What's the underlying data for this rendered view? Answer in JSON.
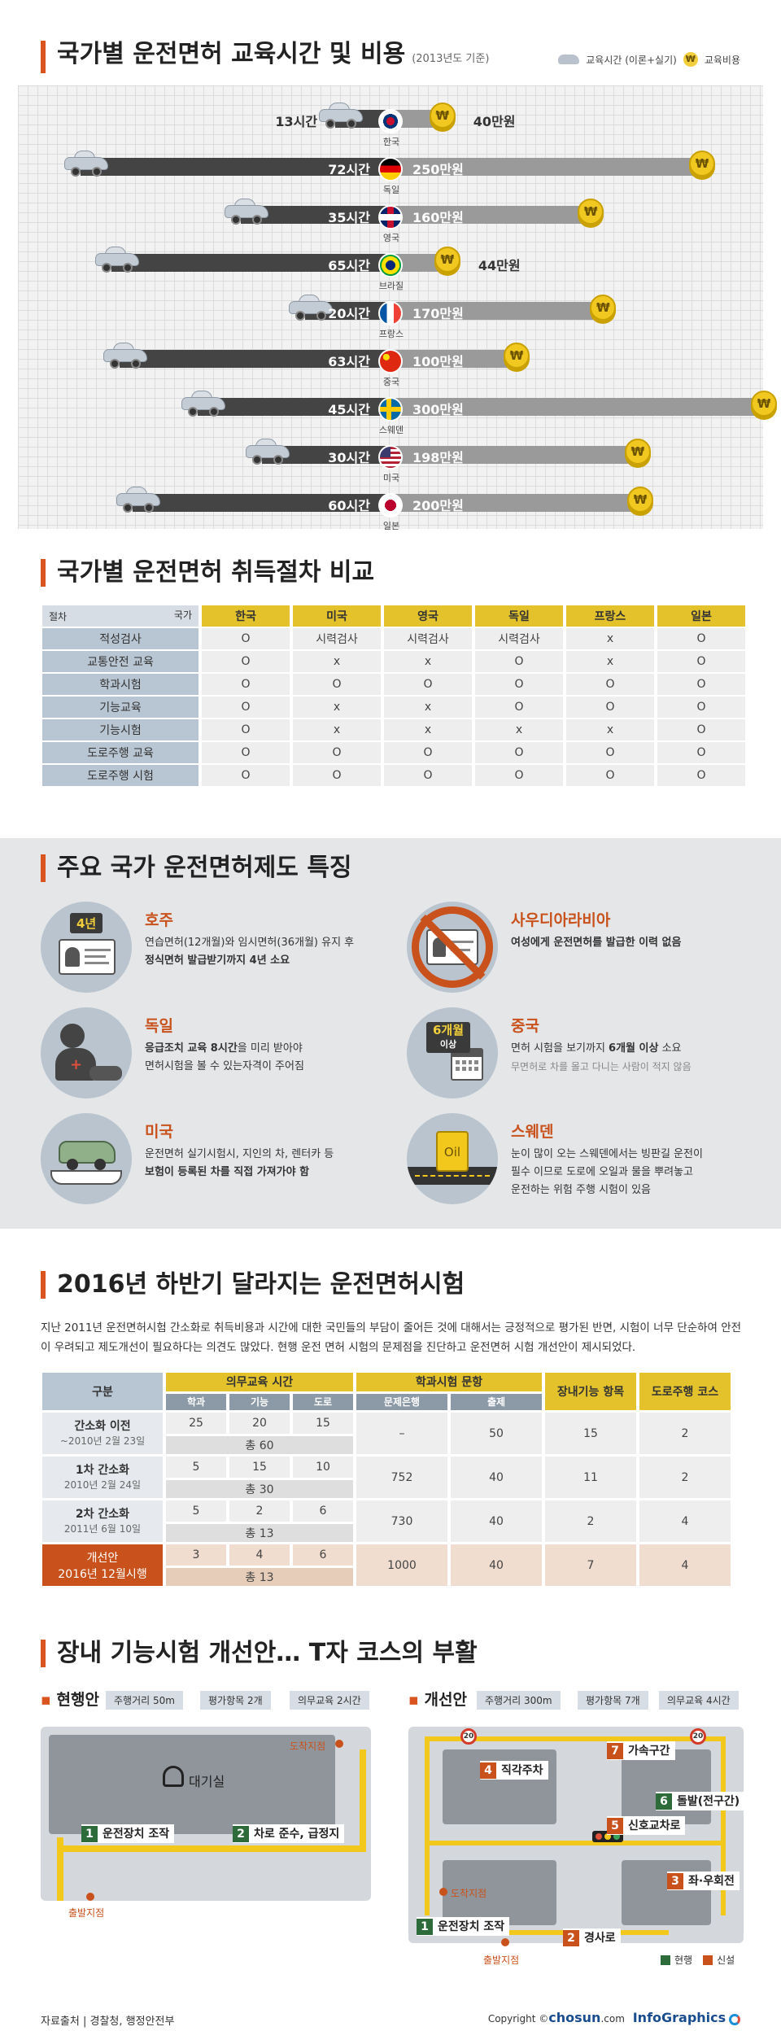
{
  "section1": {
    "title": "국가별 운전면허 교육시간 및 비용",
    "subtitle": "(2013년도 기준)",
    "legend_time": "교육시간 (이론+실기)",
    "legend_cost": "교육비용",
    "coin_symbol": "₩",
    "rows": [
      {
        "country": "한국",
        "hours": "13시간",
        "cost": "40만원",
        "h": 13,
        "c": 40
      },
      {
        "country": "독일",
        "hours": "72시간",
        "cost": "250만원",
        "h": 72,
        "c": 250
      },
      {
        "country": "영국",
        "hours": "35시간",
        "cost": "160만원",
        "h": 35,
        "c": 160
      },
      {
        "country": "브라질",
        "hours": "65시간",
        "cost": "44만원",
        "h": 65,
        "c": 44
      },
      {
        "country": "프랑스",
        "hours": "20시간",
        "cost": "170만원",
        "h": 20,
        "c": 170
      },
      {
        "country": "중국",
        "hours": "63시간",
        "cost": "100만원",
        "h": 63,
        "c": 100
      },
      {
        "country": "스웨덴",
        "hours": "45시간",
        "cost": "300만원",
        "h": 45,
        "c": 300
      },
      {
        "country": "미국",
        "hours": "30시간",
        "cost": "198만원",
        "h": 30,
        "c": 198
      },
      {
        "country": "일본",
        "hours": "60시간",
        "cost": "200만원",
        "h": 60,
        "c": 200
      }
    ]
  },
  "section2": {
    "title": "국가별 운전면허 취득절차 비교",
    "corner_procedure": "절차",
    "corner_country": "국가",
    "countries": [
      "한국",
      "미국",
      "영국",
      "독일",
      "프랑스",
      "일본"
    ],
    "rows": [
      {
        "label": "적성검사",
        "values": [
          "O",
          "시력검사",
          "시력검사",
          "시력검사",
          "x",
          "O"
        ]
      },
      {
        "label": "교통안전 교육",
        "values": [
          "O",
          "x",
          "x",
          "O",
          "x",
          "O"
        ]
      },
      {
        "label": "학과시험",
        "values": [
          "O",
          "O",
          "O",
          "O",
          "O",
          "O"
        ]
      },
      {
        "label": "기능교육",
        "values": [
          "O",
          "x",
          "x",
          "O",
          "O",
          "O"
        ]
      },
      {
        "label": "기능시험",
        "values": [
          "O",
          "x",
          "x",
          "x",
          "x",
          "O"
        ]
      },
      {
        "label": "도로주행 교육",
        "values": [
          "O",
          "O",
          "O",
          "O",
          "O",
          "O"
        ]
      },
      {
        "label": "도로주행 시험",
        "values": [
          "O",
          "O",
          "O",
          "O",
          "O",
          "O"
        ]
      }
    ]
  },
  "section3": {
    "title": "주요 국가 운전면허제도 특징",
    "australia": {
      "name": "호주",
      "badge": "4년",
      "line1": "연습면허(12개월)와 임시면허(36개월) 유지 후",
      "line2": "정식면허 발급받기까지 4년 소요"
    },
    "saudi": {
      "name": "사우디아라비아",
      "line1": "여성에게 운전면허를 발급한 이력 없음"
    },
    "germany": {
      "name": "독일",
      "line1a": "응급조치 교육 8시간",
      "line1b": "을 미리 받아야",
      "line2": "면허시험을 볼 수 있는자격이 주어짐"
    },
    "china": {
      "name": "중국",
      "badge": "6개월",
      "badge_sub": "이상",
      "line1a": "면허 시험을 보기까지 ",
      "line1b": "6개월 이상",
      "line1c": " 소요",
      "line2": "무면허로 차를 몰고 다니는 사람이 적지 않음"
    },
    "usa": {
      "name": "미국",
      "line1": "운전면허 실기시험시,  지인의 차, 렌터카 등",
      "line2": "보험이 등록된 차를 직접 가져가야 함"
    },
    "sweden": {
      "name": "스웨덴",
      "badge": "Oil",
      "line1": "눈이 많이 오는 스웨덴에서는 빙판길 운전이",
      "line2": "필수 이므로 도로에 오일과 물을 뿌려놓고",
      "line3": "운전하는 위험 주행 시험이 있음"
    }
  },
  "section4": {
    "title": "2016년 하반기 달라지는 운전면허시험",
    "paragraph": "지난 2011년 운전면허시험 간소화로 취득비용과 시간에 대한 국민들의 부담이 줄어든 것에 대해서는 긍정적으로 평가된 반면, 시험이 너무 단순하여 안전이 우려되고 제도개선이 필요하다는 의견도 많았다. 현행 운전 면허 시험의 문제점을 진단하고 운전면허 시험 개선안이 제시되었다.",
    "h_division": "구분",
    "h_mandatory": "의무교육 시간",
    "h_theory": "학과시험 문항",
    "h_skill": "장내기능 항목",
    "h_road": "도로주행 코스",
    "sub": [
      "학과",
      "기능",
      "도로",
      "문제은행",
      "출제"
    ],
    "rows": [
      {
        "label": "간소화 이전",
        "sub": "~2010년 2월 23일",
        "v": [
          "25",
          "20",
          "15"
        ],
        "total": "총 60",
        "bank": "–",
        "q": "50",
        "skill": "15",
        "road": "2"
      },
      {
        "label": "1차 간소화",
        "sub": "2010년 2월 24일",
        "v": [
          "5",
          "15",
          "10"
        ],
        "total": "총 30",
        "bank": "752",
        "q": "40",
        "skill": "11",
        "road": "2"
      },
      {
        "label": "2차 간소화",
        "sub": "2011년 6월 10일",
        "v": [
          "5",
          "2",
          "6"
        ],
        "total": "총 13",
        "bank": "730",
        "q": "40",
        "skill": "2",
        "road": "4"
      },
      {
        "label": "개선안",
        "sub": "2016년 12월시행",
        "v": [
          "3",
          "4",
          "6"
        ],
        "total": "총 13",
        "bank": "1000",
        "q": "40",
        "skill": "7",
        "road": "4"
      }
    ]
  },
  "section5": {
    "title": "장내 기능시험 개선안… T자 코스의 부활",
    "current": {
      "label": "현행안",
      "chips": [
        "주행거리 50m",
        "평가항목 2개",
        "의무교육 2시간"
      ],
      "waiting": "대기실",
      "arrival": "도착지점",
      "start": "출발지점",
      "step1": "운전장치 조작",
      "step2": "차로 준수, 급정지"
    },
    "proposed": {
      "label": "개선안",
      "chips": [
        "주행거리 300m",
        "평가항목 7개",
        "의무교육 4시간"
      ],
      "arrival": "도착지점",
      "start": "출발지점",
      "speed": "20",
      "steps": [
        "운전장치 조작",
        "경사로",
        "좌·우회전",
        "직각주차",
        "신호교차로",
        "돌발(전구간)",
        "가속구간"
      ]
    },
    "legend_current": "현행",
    "legend_new": "신설"
  },
  "footer": {
    "source": "자료출처 | 경찰청, 행정안전부",
    "copyright": "Copyright ©",
    "brand": "chosun",
    "domain": ".com",
    "infographics": "InfoGraphics"
  }
}
